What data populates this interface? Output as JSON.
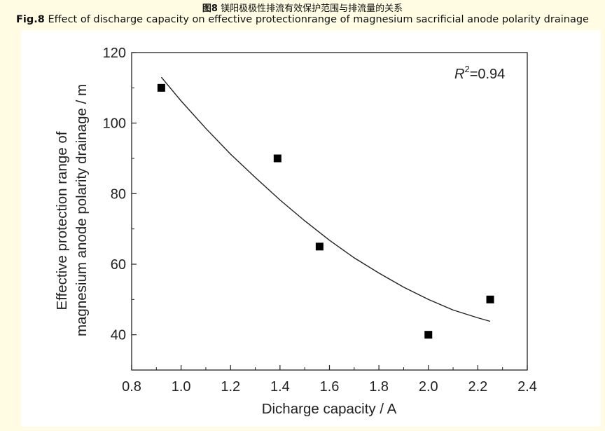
{
  "caption": {
    "cn_label": "图8",
    "cn_text": "镁阳极极性排流有效保护范围与排流量的关系",
    "en_label": "Fig.8",
    "en_text": "Effect of discharge capacity on effective protectionrange of magnesium sacrificial anode polarity drainage"
  },
  "chart_data": {
    "type": "scatter",
    "title": "",
    "xlabel": "Dicharge capacity / A",
    "ylabel_lines": [
      "Effective protection range of",
      "magnesium anode polarity drainage / m"
    ],
    "xlim": [
      0.8,
      2.4
    ],
    "ylim": [
      30,
      120
    ],
    "xticks": [
      0.8,
      1.0,
      1.2,
      1.4,
      1.6,
      1.8,
      2.0,
      2.2,
      2.4
    ],
    "xtick_labels": [
      "0.8",
      "1.0",
      "1.2",
      "1.4",
      "1.6",
      "1.8",
      "2.0",
      "2.2",
      "2.4"
    ],
    "yticks": [
      40,
      60,
      80,
      100,
      120
    ],
    "ytick_labels": [
      "40",
      "60",
      "80",
      "100",
      "120"
    ],
    "series": [
      {
        "name": "measured",
        "marker": "square",
        "x": [
          0.92,
          1.39,
          1.56,
          2.0,
          2.25
        ],
        "y": [
          110,
          90,
          65,
          40,
          50
        ]
      },
      {
        "name": "fit",
        "style": "line",
        "x": [
          0.92,
          1.0,
          1.1,
          1.2,
          1.3,
          1.4,
          1.5,
          1.6,
          1.7,
          1.8,
          1.9,
          2.0,
          2.1,
          2.2,
          2.25
        ],
        "y": [
          113.0,
          106.3,
          98.5,
          91.2,
          84.6,
          78.2,
          72.3,
          66.8,
          61.8,
          57.5,
          53.5,
          50.0,
          47.0,
          44.8,
          43.8
        ]
      }
    ],
    "annotation": {
      "italic": "R",
      "superscript": "2",
      "text": "=0.94"
    },
    "colors": {
      "marker": "#000000",
      "line": "#222222",
      "axis": "#222222"
    }
  }
}
